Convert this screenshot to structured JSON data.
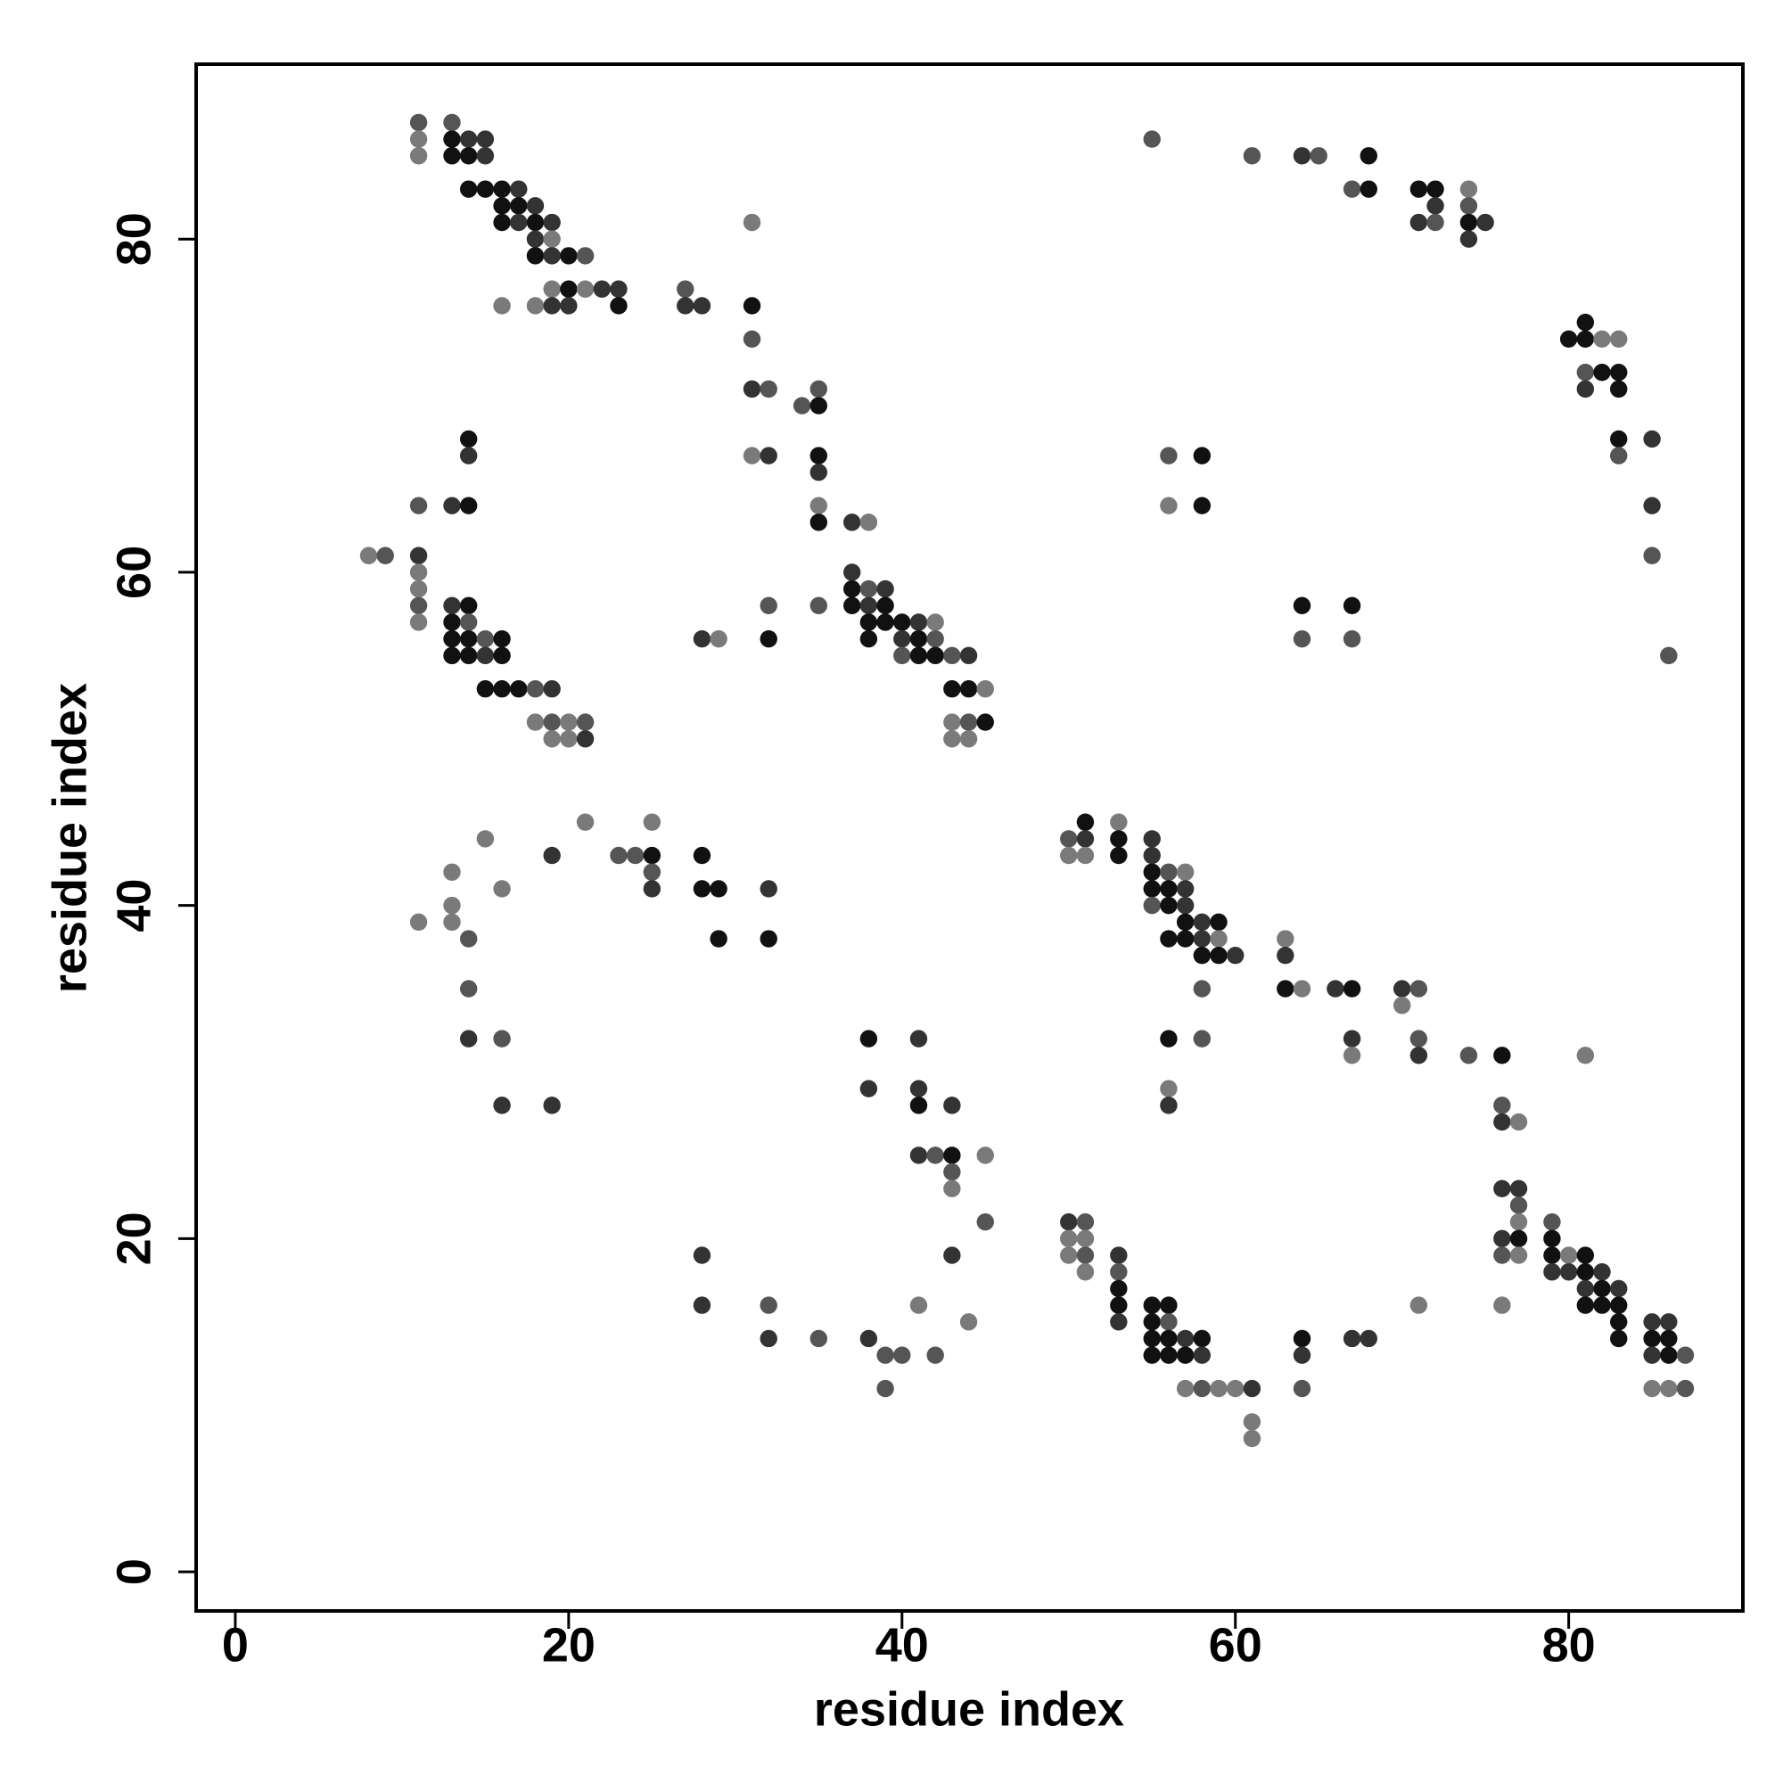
{
  "chart_data": {
    "type": "scatter",
    "x_label": "residue index",
    "y_label": "residue index",
    "xlim": [
      -2.35,
      90.45
    ],
    "ylim": [
      -2.35,
      90.5
    ],
    "xticks": [
      0,
      20,
      40,
      60,
      80
    ],
    "yticks": [
      0,
      20,
      40,
      60,
      80
    ],
    "x": [
      11,
      13,
      11,
      13,
      14,
      15,
      55,
      11,
      13,
      14,
      15,
      61,
      64,
      65,
      68,
      14,
      15,
      16,
      17,
      67,
      68,
      71,
      72,
      74,
      16,
      17,
      18,
      72,
      74,
      16,
      17,
      18,
      19,
      31,
      71,
      72,
      74,
      75,
      18,
      19,
      74,
      18,
      19,
      20,
      21,
      19,
      20,
      21,
      22,
      23,
      27,
      16,
      18,
      19,
      20,
      23,
      27,
      28,
      31,
      81,
      31,
      80,
      81,
      82,
      83,
      81,
      82,
      83,
      31,
      32,
      35,
      81,
      83,
      34,
      35,
      14,
      83,
      85,
      14,
      31,
      32,
      35,
      56,
      58,
      83,
      35,
      11,
      13,
      14,
      35,
      56,
      58,
      85,
      35,
      37,
      38,
      8,
      9,
      11,
      85,
      11,
      37,
      11,
      37,
      38,
      39,
      11,
      13,
      14,
      32,
      35,
      37,
      38,
      39,
      64,
      67,
      11,
      13,
      14,
      38,
      39,
      40,
      41,
      42,
      13,
      14,
      15,
      16,
      28,
      29,
      32,
      38,
      40,
      41,
      42,
      64,
      67,
      13,
      14,
      15,
      16,
      40,
      41,
      42,
      43,
      44,
      86,
      15,
      16,
      17,
      18,
      19,
      43,
      44,
      45,
      18,
      19,
      20,
      21,
      43,
      44,
      45,
      19,
      20,
      21,
      43,
      44,
      21,
      25,
      51,
      53,
      15,
      50,
      51,
      53,
      55,
      19,
      23,
      24,
      25,
      28,
      50,
      51,
      53,
      55,
      13,
      25,
      55,
      56,
      57,
      16,
      25,
      28,
      29,
      32,
      55,
      56,
      57,
      13,
      55,
      56,
      57,
      11,
      13,
      57,
      58,
      59,
      14,
      29,
      32,
      56,
      57,
      58,
      59,
      63,
      58,
      59,
      60,
      63,
      14,
      58,
      63,
      64,
      66,
      67,
      70,
      71,
      70,
      14,
      16,
      38,
      41,
      56,
      58,
      67,
      71,
      67,
      71,
      74,
      76,
      81,
      38,
      41,
      56,
      16,
      19,
      41,
      43,
      56,
      76,
      76,
      77,
      41,
      42,
      43,
      45,
      43,
      43,
      76,
      77,
      77,
      45,
      50,
      51,
      77,
      79,
      50,
      51,
      76,
      77,
      79,
      28,
      43,
      50,
      51,
      53,
      76,
      77,
      79,
      80,
      81,
      51,
      53,
      79,
      80,
      81,
      82,
      53,
      81,
      82,
      83,
      28,
      32,
      41,
      53,
      55,
      56,
      71,
      76,
      81,
      82,
      83,
      44,
      53,
      55,
      56,
      83,
      85,
      86,
      32,
      35,
      38,
      55,
      56,
      57,
      58,
      64,
      67,
      68,
      83,
      85,
      86,
      39,
      40,
      42,
      55,
      56,
      57,
      58,
      64,
      85,
      86,
      87,
      39,
      57,
      58,
      59,
      60,
      61,
      64,
      85,
      86,
      87,
      61,
      61
    ],
    "y": [
      87,
      87,
      86,
      86,
      86,
      86,
      86,
      85,
      85,
      85,
      85,
      85,
      85,
      85,
      85,
      83,
      83,
      83,
      83,
      83,
      83,
      83,
      83,
      83,
      82,
      82,
      82,
      82,
      82,
      81,
      81,
      81,
      81,
      81,
      81,
      81,
      81,
      81,
      80,
      80,
      80,
      79,
      79,
      79,
      79,
      77,
      77,
      77,
      77,
      77,
      77,
      76,
      76,
      76,
      76,
      76,
      76,
      76,
      76,
      75,
      74,
      74,
      74,
      74,
      74,
      72,
      72,
      72,
      71,
      71,
      71,
      71,
      71,
      70,
      70,
      68,
      68,
      68,
      67,
      67,
      67,
      67,
      67,
      67,
      67,
      66,
      64,
      64,
      64,
      64,
      64,
      64,
      64,
      63,
      63,
      63,
      61,
      61,
      61,
      61,
      60,
      60,
      59,
      59,
      59,
      59,
      58,
      58,
      58,
      58,
      58,
      58,
      58,
      58,
      58,
      58,
      57,
      57,
      57,
      57,
      57,
      57,
      57,
      57,
      56,
      56,
      56,
      56,
      56,
      56,
      56,
      56,
      56,
      56,
      56,
      56,
      56,
      55,
      55,
      55,
      55,
      55,
      55,
      55,
      55,
      55,
      55,
      53,
      53,
      53,
      53,
      53,
      53,
      53,
      53,
      51,
      51,
      51,
      51,
      51,
      51,
      51,
      50,
      50,
      50,
      50,
      50,
      45,
      45,
      45,
      45,
      44,
      44,
      44,
      44,
      44,
      43,
      43,
      43,
      43,
      43,
      43,
      43,
      43,
      43,
      42,
      42,
      42,
      42,
      42,
      41,
      41,
      41,
      41,
      41,
      41,
      41,
      41,
      40,
      40,
      40,
      40,
      39,
      39,
      39,
      39,
      39,
      38,
      38,
      38,
      38,
      38,
      38,
      38,
      38,
      37,
      37,
      37,
      37,
      35,
      35,
      35,
      35,
      35,
      35,
      35,
      35,
      34,
      32,
      32,
      32,
      32,
      32,
      32,
      32,
      32,
      31,
      31,
      31,
      31,
      31,
      29,
      29,
      29,
      28,
      28,
      28,
      28,
      28,
      28,
      27,
      27,
      25,
      25,
      25,
      25,
      24,
      23,
      23,
      23,
      22,
      21,
      21,
      21,
      21,
      21,
      20,
      20,
      20,
      20,
      20,
      19,
      19,
      19,
      19,
      19,
      19,
      19,
      19,
      19,
      19,
      18,
      18,
      18,
      18,
      18,
      18,
      17,
      17,
      17,
      17,
      16,
      16,
      16,
      16,
      16,
      16,
      16,
      16,
      16,
      16,
      16,
      15,
      15,
      15,
      15,
      15,
      15,
      15,
      14,
      14,
      14,
      14,
      14,
      14,
      14,
      14,
      14,
      14,
      14,
      14,
      14,
      13,
      13,
      13,
      13,
      13,
      13,
      13,
      13,
      13,
      13,
      13,
      11,
      11,
      11,
      11,
      11,
      11,
      11,
      11,
      11,
      11,
      9,
      8
    ],
    "colors": [
      "#555",
      "#555",
      "#7a7a7a",
      "#111",
      "#333",
      "#333",
      "#555",
      "#7a7a7a",
      "#111",
      "#111",
      "#333",
      "#555",
      "#333",
      "#555",
      "#111",
      "#111",
      "#111",
      "#111",
      "#333",
      "#555",
      "#111",
      "#111",
      "#111",
      "#7a7a7a",
      "#111",
      "#111",
      "#333",
      "#333",
      "#555",
      "#111",
      "#333",
      "#111",
      "#333",
      "#7a7a7a",
      "#333",
      "#555",
      "#111",
      "#333",
      "#333",
      "#7a7a7a",
      "#333",
      "#111",
      "#333",
      "#111",
      "#555",
      "#7a7a7a",
      "#111",
      "#7a7a7a",
      "#333",
      "#333",
      "#555",
      "#7a7a7a",
      "#7a7a7a",
      "#333",
      "#333",
      "#111",
      "#333",
      "#333",
      "#111",
      "#111",
      "#555",
      "#111",
      "#111",
      "#7a7a7a",
      "#7a7a7a",
      "#555",
      "#111",
      "#111",
      "#333",
      "#555",
      "#555",
      "#333",
      "#111",
      "#555",
      "#111",
      "#111",
      "#111",
      "#333",
      "#333",
      "#7a7a7a",
      "#333",
      "#111",
      "#555",
      "#111",
      "#555",
      "#333",
      "#555",
      "#333",
      "#111",
      "#7a7a7a",
      "#7a7a7a",
      "#111",
      "#333",
      "#111",
      "#333",
      "#7a7a7a",
      "#7a7a7a",
      "#555",
      "#333",
      "#555",
      "#7a7a7a",
      "#333",
      "#7a7a7a",
      "#111",
      "#555",
      "#333",
      "#555",
      "#333",
      "#111",
      "#555",
      "#555",
      "#111",
      "#333",
      "#111",
      "#111",
      "#111",
      "#7a7a7a",
      "#111",
      "#555",
      "#111",
      "#111",
      "#111",
      "#333",
      "#7a7a7a",
      "#111",
      "#111",
      "#555",
      "#111",
      "#333",
      "#7a7a7a",
      "#111",
      "#111",
      "#333",
      "#111",
      "#555",
      "#555",
      "#555",
      "#111",
      "#111",
      "#333",
      "#111",
      "#555",
      "#111",
      "#111",
      "#555",
      "#333",
      "#555",
      "#111",
      "#111",
      "#111",
      "#555",
      "#333",
      "#111",
      "#111",
      "#7a7a7a",
      "#7a7a7a",
      "#555",
      "#7a7a7a",
      "#555",
      "#7a7a7a",
      "#555",
      "#111",
      "#7a7a7a",
      "#7a7a7a",
      "#333",
      "#7a7a7a",
      "#7a7a7a",
      "#7a7a7a",
      "#7a7a7a",
      "#111",
      "#7a7a7a",
      "#7a7a7a",
      "#555",
      "#333",
      "#111",
      "#333",
      "#333",
      "#555",
      "#555",
      "#111",
      "#111",
      "#7a7a7a",
      "#7a7a7a",
      "#111",
      "#333",
      "#7a7a7a",
      "#555",
      "#111",
      "#555",
      "#7a7a7a",
      "#7a7a7a",
      "#333",
      "#111",
      "#111",
      "#333",
      "#111",
      "#111",
      "#333",
      "#7a7a7a",
      "#555",
      "#111",
      "#333",
      "#7a7a7a",
      "#7a7a7a",
      "#111",
      "#333",
      "#111",
      "#555",
      "#111",
      "#111",
      "#111",
      "#111",
      "#333",
      "#7a7a7a",
      "#7a7a7a",
      "#111",
      "#111",
      "#333",
      "#333",
      "#555",
      "#555",
      "#111",
      "#7a7a7a",
      "#333",
      "#111",
      "#333",
      "#555",
      "#7a7a7a",
      "#333",
      "#555",
      "#111",
      "#333",
      "#111",
      "#555",
      "#333",
      "#555",
      "#7a7a7a",
      "#333",
      "#555",
      "#111",
      "#7a7a7a",
      "#333",
      "#333",
      "#7a7a7a",
      "#333",
      "#333",
      "#111",
      "#333",
      "#333",
      "#555",
      "#333",
      "#7a7a7a",
      "#333",
      "#555",
      "#111",
      "#7a7a7a",
      "#555",
      "#7a7a7a",
      "#333",
      "#333",
      "#555",
      "#555",
      "#333",
      "#555",
      "#7a7a7a",
      "#555",
      "#7a7a7a",
      "#7a7a7a",
      "#333",
      "#111",
      "#111",
      "#333",
      "#333",
      "#7a7a7a",
      "#555",
      "#333",
      "#555",
      "#7a7a7a",
      "#111",
      "#7a7a7a",
      "#111",
      "#7a7a7a",
      "#555",
      "#333",
      "#333",
      "#111",
      "#333",
      "#111",
      "#333",
      "#111",
      "#333",
      "#333",
      "#555",
      "#7a7a7a",
      "#111",
      "#111",
      "#111",
      "#7a7a7a",
      "#7a7a7a",
      "#111",
      "#111",
      "#111",
      "#7a7a7a",
      "#333",
      "#111",
      "#555",
      "#111",
      "#333",
      "#333",
      "#333",
      "#555",
      "#333",
      "#111",
      "#111",
      "#333",
      "#111",
      "#111",
      "#333",
      "#333",
      "#111",
      "#111",
      "#111",
      "#555",
      "#555",
      "#555",
      "#111",
      "#111",
      "#111",
      "#333",
      "#333",
      "#333",
      "#111",
      "#555",
      "#555",
      "#7a7a7a",
      "#555",
      "#7a7a7a",
      "#7a7a7a",
      "#333",
      "#555",
      "#7a7a7a",
      "#7a7a7a",
      "#555",
      "#7a7a7a",
      "#7a7a7a"
    ]
  }
}
